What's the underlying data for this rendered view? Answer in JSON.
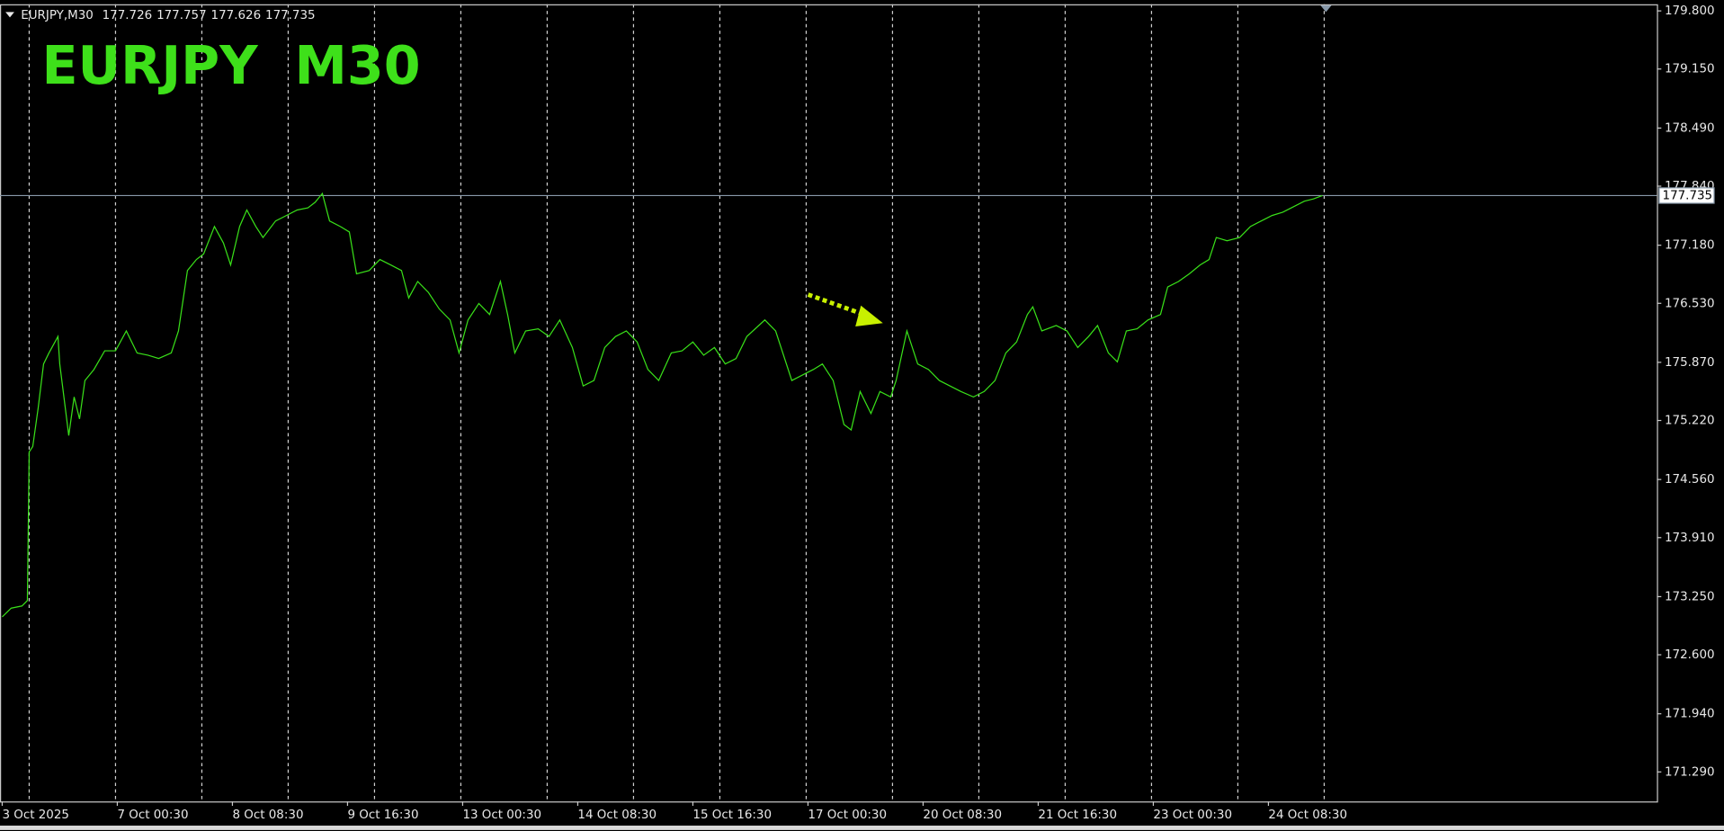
{
  "chart_data": {
    "type": "line",
    "title": "EURJPY  M30",
    "header": {
      "symbol": "EURJPY,M30",
      "values": [
        177.726,
        177.757,
        177.626,
        177.735
      ]
    },
    "color": "#39e019",
    "last_price": 177.735,
    "x": [
      0,
      5,
      11,
      14,
      15,
      17,
      20,
      23,
      26,
      31,
      32,
      37,
      40,
      43,
      46,
      51,
      57,
      63,
      69,
      75,
      81,
      87,
      94,
      98,
      103,
      108,
      112,
      118,
      123,
      127,
      132,
      136,
      141,
      145,
      152,
      158,
      164,
      170,
      174,
      178,
      182,
      188,
      193,
      197,
      204,
      210,
      216,
      222,
      226,
      231,
      237,
      243,
      249,
      254,
      259,
      265,
      271,
      277,
      281,
      285,
      291,
      298,
      304,
      310,
      317,
      323,
      329,
      335,
      341,
      347,
      353,
      359,
      365,
      372,
      378,
      384,
      390,
      396,
      402,
      408,
      414,
      424,
      430,
      434,
      439,
      445,
      451,
      456,
      462,
      468,
      472,
      477,
      483,
      488,
      494,
      497,
      503,
      509,
      515,
      521,
      527,
      533,
      540,
      546,
      552,
      558,
      564,
      570,
      573,
      578,
      586,
      592,
      598,
      604,
      609,
      615,
      620,
      625,
      631,
      637,
      644,
      648,
      654,
      660,
      666,
      671,
      675,
      681,
      688,
      694,
      700,
      706,
      712,
      718,
      724,
      729,
      734
    ],
    "values": [
      173.023,
      173.121,
      173.146,
      173.207,
      174.868,
      174.929,
      175.36,
      175.852,
      175.975,
      176.159,
      175.852,
      175.052,
      175.483,
      175.237,
      175.667,
      175.79,
      175.999,
      175.999,
      176.221,
      175.975,
      175.95,
      175.913,
      175.975,
      176.221,
      176.897,
      177.02,
      177.082,
      177.389,
      177.205,
      176.959,
      177.389,
      177.574,
      177.389,
      177.266,
      177.451,
      177.512,
      177.574,
      177.598,
      177.66,
      177.758,
      177.451,
      177.389,
      177.328,
      176.86,
      176.897,
      177.02,
      176.959,
      176.897,
      176.59,
      176.774,
      176.651,
      176.467,
      176.344,
      175.975,
      176.344,
      176.528,
      176.405,
      176.774,
      176.405,
      175.975,
      176.221,
      176.245,
      176.159,
      176.344,
      176.036,
      175.606,
      175.667,
      176.036,
      176.159,
      176.221,
      176.098,
      175.79,
      175.667,
      175.975,
      175.999,
      176.098,
      175.95,
      176.036,
      175.852,
      175.913,
      176.159,
      176.344,
      176.221,
      175.975,
      175.667,
      175.729,
      175.79,
      175.852,
      175.667,
      175.175,
      175.114,
      175.544,
      175.298,
      175.544,
      175.483,
      175.667,
      176.221,
      175.852,
      175.79,
      175.667,
      175.606,
      175.544,
      175.483,
      175.544,
      175.667,
      175.975,
      176.098,
      176.405,
      176.491,
      176.221,
      176.282,
      176.221,
      176.036,
      176.159,
      176.282,
      175.975,
      175.876,
      176.221,
      176.245,
      176.344,
      176.405,
      176.713,
      176.774,
      176.86,
      176.959,
      177.02,
      177.266,
      177.229,
      177.266,
      177.389,
      177.451,
      177.512,
      177.549,
      177.611,
      177.672,
      177.697,
      177.735
    ],
    "xlim": [
      0,
      920
    ],
    "ylim": [
      170.96,
      179.874
    ],
    "xticks": [
      {
        "value": 0,
        "label": "3 Oct 2025"
      },
      {
        "value": 64,
        "label": "7 Oct 00:30"
      },
      {
        "value": 128,
        "label": "8 Oct 08:30"
      },
      {
        "value": 192,
        "label": "9 Oct 16:30"
      },
      {
        "value": 256,
        "label": "13 Oct 00:30"
      },
      {
        "value": 320,
        "label": "14 Oct 08:30"
      },
      {
        "value": 384,
        "label": "15 Oct 16:30"
      },
      {
        "value": 448,
        "label": "17 Oct 00:30"
      },
      {
        "value": 512,
        "label": "20 Oct 08:30"
      },
      {
        "value": 576,
        "label": "21 Oct 16:30"
      },
      {
        "value": 640,
        "label": "23 Oct 00:30"
      },
      {
        "value": 704,
        "label": "24 Oct 08:30"
      }
    ],
    "xgrid": [
      15,
      63,
      111,
      159,
      207,
      255,
      303,
      351,
      399,
      447,
      495,
      543,
      591,
      639,
      687,
      735
    ],
    "yticks": [
      {
        "value": 179.8,
        "label": "179.800"
      },
      {
        "value": 179.15,
        "label": "179.150"
      },
      {
        "value": 178.49,
        "label": "178.490"
      },
      {
        "value": 177.84,
        "label": "177.840"
      },
      {
        "value": 177.18,
        "label": "177.180"
      },
      {
        "value": 176.53,
        "label": "176.530"
      },
      {
        "value": 175.87,
        "label": "175.870"
      },
      {
        "value": 175.22,
        "label": "175.220"
      },
      {
        "value": 174.56,
        "label": "174.560"
      },
      {
        "value": 173.91,
        "label": "173.910"
      },
      {
        "value": 173.25,
        "label": "173.250"
      },
      {
        "value": 172.6,
        "label": "172.600"
      },
      {
        "value": 171.94,
        "label": "171.940"
      },
      {
        "value": 171.29,
        "label": "171.290"
      }
    ]
  }
}
